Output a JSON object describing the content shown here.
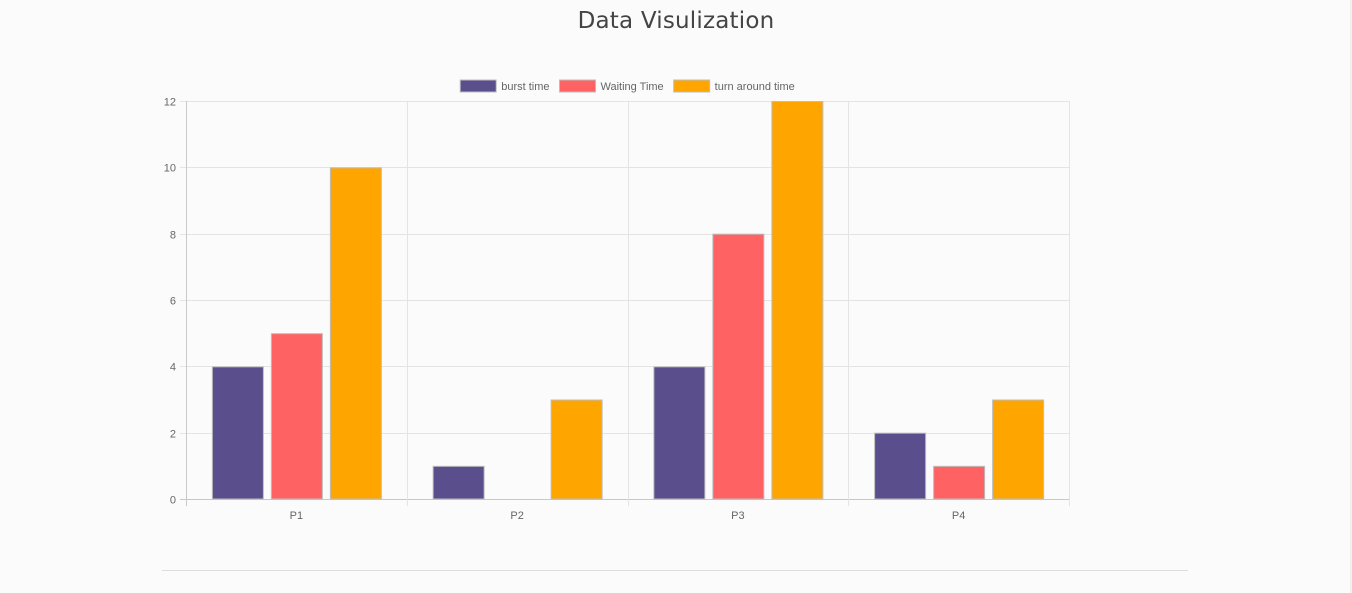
{
  "page": {
    "title": "Data Visulization"
  },
  "chart_data": {
    "type": "bar",
    "categories": [
      "P1",
      "P2",
      "P3",
      "P4"
    ],
    "series": [
      {
        "name": "burst time",
        "values": [
          4,
          1,
          4,
          2
        ],
        "color": "#5a4e8c"
      },
      {
        "name": "Waiting Time",
        "values": [
          5,
          0,
          8,
          1
        ],
        "color": "#ff6262"
      },
      {
        "name": "turn around time",
        "values": [
          10,
          3,
          12,
          3
        ],
        "color": "#ffa500"
      }
    ],
    "ylim": [
      0,
      12
    ],
    "yticks": [
      0,
      2,
      4,
      6,
      8,
      10,
      12
    ],
    "grid": true,
    "legend": "top-center",
    "xlabel": "",
    "ylabel": ""
  }
}
